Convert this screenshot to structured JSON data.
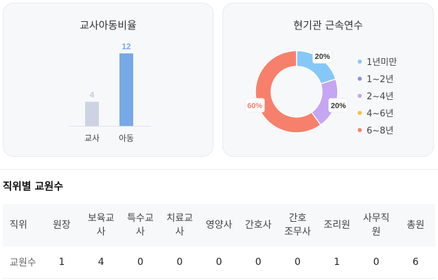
{
  "ratio_card": {
    "title": "교사아동비율"
  },
  "years_card": {
    "title": "현기관 근속연수"
  },
  "chart_data": [
    {
      "type": "bar",
      "title": "교사아동비율",
      "categories": [
        "교사",
        "아동"
      ],
      "values": [
        4,
        12
      ],
      "bar_colors": [
        "#cdd3e3",
        "#77a9e8"
      ],
      "label_colors": [
        "#c6cbd6",
        "#77a9e8"
      ],
      "grid": false
    },
    {
      "type": "pie",
      "title": "현기관 근속연수",
      "donut": true,
      "categories": [
        "1년미만",
        "1~2년",
        "2~4년",
        "4~6년",
        "6~8년"
      ],
      "values": [
        20,
        0,
        20,
        0,
        60
      ],
      "value_labels": [
        "20%",
        "",
        "20%",
        "",
        "60%"
      ],
      "colors": [
        "#85c8f8",
        "#8a93dc",
        "#c6a5f3",
        "#f5c242",
        "#f7806c"
      ],
      "legend_position": "right"
    }
  ],
  "section": {
    "title": "직위별 교원수"
  },
  "table": {
    "row_header": "직위",
    "columns": [
      [
        "원장"
      ],
      [
        "보육교",
        "사"
      ],
      [
        "특수교",
        "사"
      ],
      [
        "치료교",
        "사"
      ],
      [
        "영양사"
      ],
      [
        "간호사"
      ],
      [
        "간호",
        "조무사"
      ],
      [
        "조리원"
      ],
      [
        "사무직",
        "원"
      ],
      [
        "총원"
      ]
    ],
    "row_label": "교원수",
    "values": [
      "1",
      "4",
      "0",
      "0",
      "0",
      "0",
      "0",
      "1",
      "0",
      "6"
    ]
  }
}
